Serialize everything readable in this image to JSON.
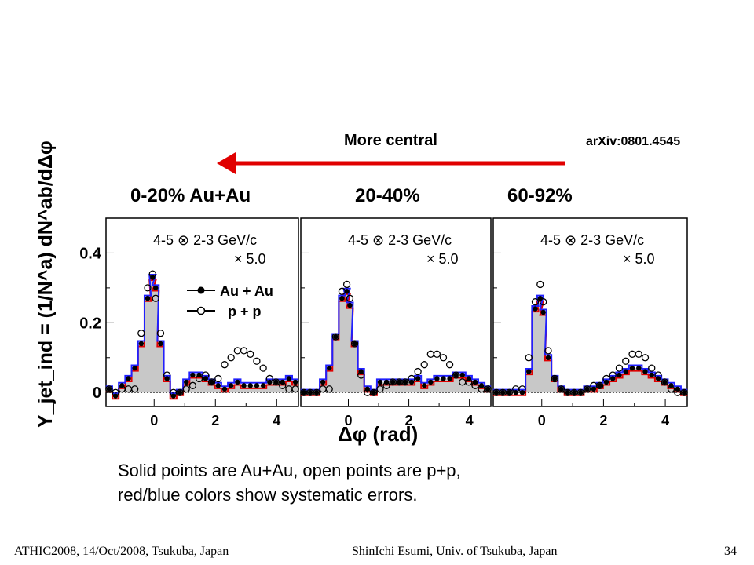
{
  "header": {
    "arrow_label": "More central",
    "reference": "arXiv:0801.4545",
    "arrow_color": "#e00000"
  },
  "panel_labels": [
    "0-20% Au+Au",
    "20-40%",
    "60-92%"
  ],
  "caption": {
    "line1": "Solid points are Au+Au, open points are p+p,",
    "line2": "red/blue colors show systematic errors."
  },
  "footer": {
    "left": "ATHIC2008, 14/Oct/2008, Tsukuba, Japan",
    "center": "ShinIchi Esumi, Univ. of Tsukuba, Japan",
    "page": "34"
  },
  "chart_data": {
    "type": "scatter",
    "ylabel": "Y_jet_ind = (1/N^a) dN^ab/dΔφ",
    "xlabel": "Δφ (rad)",
    "y_ticks": [
      "0",
      "0.2",
      "0.4"
    ],
    "x_ticks": [
      "0",
      "2",
      "4"
    ],
    "xlim": [
      -1.57,
      4.71
    ],
    "ylim": [
      -0.04,
      0.5
    ],
    "colors": {
      "auau_fill": "#c8c8c8",
      "sys_low": "#e00000",
      "sys_high": "#2020ff"
    },
    "legend": {
      "auau": "Au + Au",
      "pp": "p + p"
    },
    "x": [
      -1.47,
      -1.26,
      -1.05,
      -0.84,
      -0.63,
      -0.42,
      -0.21,
      -0.05,
      0.05,
      0.21,
      0.42,
      0.63,
      0.84,
      1.05,
      1.26,
      1.47,
      1.68,
      1.88,
      2.09,
      2.3,
      2.51,
      2.72,
      2.93,
      3.14,
      3.35,
      3.56,
      3.77,
      3.98,
      4.19,
      4.4,
      4.61
    ],
    "panels": [
      {
        "annotation_line1": "4-5 ⊗ 2-3 GeV/c",
        "annotation_line2": "× 5.0",
        "auau": [
          0.01,
          -0.01,
          0.02,
          0.04,
          0.07,
          0.14,
          0.27,
          0.33,
          0.3,
          0.14,
          0.04,
          -0.01,
          0.0,
          0.03,
          0.05,
          0.05,
          0.04,
          0.03,
          0.02,
          0.01,
          0.02,
          0.03,
          0.02,
          0.02,
          0.02,
          0.02,
          0.03,
          0.03,
          0.03,
          0.04,
          0.03
        ],
        "pp": [
          0.01,
          0.0,
          0.01,
          0.01,
          0.01,
          0.17,
          0.3,
          0.34,
          0.27,
          0.17,
          0.05,
          0.0,
          0.0,
          0.01,
          0.02,
          0.04,
          0.05,
          0.03,
          0.04,
          0.08,
          0.1,
          0.12,
          0.12,
          0.11,
          0.09,
          0.07,
          0.04,
          0.03,
          0.02,
          0.01,
          0.01
        ]
      },
      {
        "annotation_line1": "4-5 ⊗ 2-3 GeV/c",
        "annotation_line2": "× 5.0",
        "auau": [
          0.0,
          0.0,
          0.0,
          0.03,
          0.07,
          0.16,
          0.27,
          0.29,
          0.25,
          0.14,
          0.06,
          0.01,
          0.0,
          0.03,
          0.03,
          0.03,
          0.03,
          0.03,
          0.03,
          0.04,
          0.02,
          0.03,
          0.04,
          0.04,
          0.04,
          0.05,
          0.05,
          0.04,
          0.03,
          0.02,
          0.01
        ],
        "pp": [
          0.0,
          0.0,
          0.0,
          0.01,
          0.01,
          0.16,
          0.29,
          0.31,
          0.27,
          0.14,
          0.05,
          0.0,
          0.0,
          0.01,
          0.02,
          0.03,
          0.03,
          0.03,
          0.04,
          0.06,
          0.08,
          0.11,
          0.11,
          0.1,
          0.08,
          0.05,
          0.03,
          0.03,
          0.02,
          0.01,
          0.01
        ]
      },
      {
        "annotation_line1": "4-5 ⊗ 2-3 GeV/c",
        "annotation_line2": "× 5.0",
        "auau": [
          0.0,
          0.0,
          0.0,
          0.0,
          0.0,
          0.06,
          0.24,
          0.27,
          0.23,
          0.1,
          0.04,
          0.01,
          0.0,
          0.0,
          0.0,
          0.01,
          0.01,
          0.02,
          0.03,
          0.04,
          0.05,
          0.06,
          0.07,
          0.07,
          0.06,
          0.05,
          0.04,
          0.03,
          0.02,
          0.01,
          0.0
        ],
        "pp": [
          0.0,
          0.0,
          0.0,
          0.01,
          0.01,
          0.1,
          0.26,
          0.31,
          0.26,
          0.12,
          0.04,
          0.01,
          0.0,
          0.0,
          0.0,
          0.01,
          0.02,
          0.02,
          0.04,
          0.05,
          0.07,
          0.09,
          0.11,
          0.11,
          0.1,
          0.07,
          0.05,
          0.03,
          0.01,
          0.0,
          0.0
        ]
      }
    ]
  }
}
